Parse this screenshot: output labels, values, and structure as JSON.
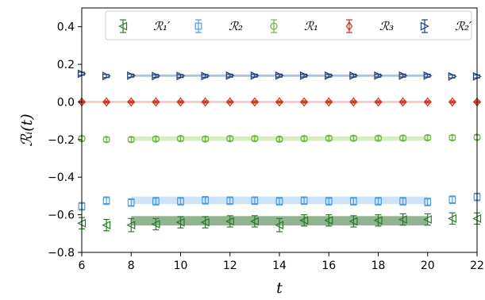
{
  "chart_data": {
    "type": "scatter",
    "xlabel": "t",
    "ylabel": "ℛᵢ(t)",
    "xlim": [
      6,
      22
    ],
    "ylim": [
      -0.8,
      0.5
    ],
    "xticks": [
      6,
      8,
      10,
      12,
      14,
      16,
      18,
      20,
      22
    ],
    "yticks": [
      -0.8,
      -0.6,
      -0.4,
      -0.2,
      0.0,
      0.2,
      0.4
    ],
    "xtick_labels": [
      "6",
      "8",
      "10",
      "12",
      "14",
      "16",
      "18",
      "20",
      "22"
    ],
    "ytick_labels": [
      "−0.8",
      "−0.6",
      "−0.4",
      "−0.2",
      "0.0",
      "0.2",
      "0.4"
    ],
    "grid": false,
    "legend": {
      "placement": "top",
      "columns": 5
    },
    "series": [
      {
        "name": "ℛ₁′",
        "color": "#2a7a2a",
        "marker": "triangle-left",
        "band_color": "#5f945f",
        "band": {
          "x_range": [
            8,
            20
          ],
          "center": -0.632,
          "half_width": 0.025
        },
        "x": [
          6,
          7,
          8,
          9,
          10,
          11,
          12,
          13,
          14,
          15,
          16,
          17,
          18,
          19,
          20,
          21,
          22
        ],
        "y": [
          -0.645,
          -0.655,
          -0.655,
          -0.65,
          -0.64,
          -0.64,
          -0.635,
          -0.635,
          -0.655,
          -0.63,
          -0.63,
          -0.635,
          -0.63,
          -0.625,
          -0.625,
          -0.62,
          -0.62
        ],
        "err": [
          0.03,
          0.03,
          0.035,
          0.03,
          0.03,
          0.03,
          0.03,
          0.03,
          0.035,
          0.03,
          0.03,
          0.03,
          0.03,
          0.03,
          0.03,
          0.03,
          0.03
        ]
      },
      {
        "name": "ℛ₂",
        "color": "#4f9be0",
        "marker": "square",
        "band_color": "#b8d9f5",
        "band": {
          "x_range": [
            8,
            20
          ],
          "center": -0.523,
          "half_width": 0.02
        },
        "x": [
          6,
          7,
          8,
          9,
          10,
          11,
          12,
          13,
          14,
          15,
          16,
          17,
          18,
          19,
          20,
          21,
          22
        ],
        "y": [
          -0.555,
          -0.525,
          -0.535,
          -0.528,
          -0.528,
          -0.523,
          -0.525,
          -0.525,
          -0.528,
          -0.525,
          -0.528,
          -0.528,
          -0.528,
          -0.528,
          -0.532,
          -0.52,
          -0.505
        ],
        "err": [
          0.02,
          0.02,
          0.02,
          0.02,
          0.02,
          0.02,
          0.02,
          0.02,
          0.02,
          0.02,
          0.02,
          0.02,
          0.02,
          0.02,
          0.02,
          0.02,
          0.02
        ]
      },
      {
        "name": "ℛ₁",
        "color": "#6db33f",
        "marker": "circle",
        "band_color": "#c9e5a8",
        "band": {
          "x_range": [
            8,
            20
          ],
          "center": -0.195,
          "half_width": 0.012
        },
        "x": [
          6,
          7,
          8,
          9,
          10,
          11,
          12,
          13,
          14,
          15,
          16,
          17,
          18,
          19,
          20,
          21,
          22
        ],
        "y": [
          -0.195,
          -0.2,
          -0.2,
          -0.197,
          -0.195,
          -0.197,
          -0.195,
          -0.195,
          -0.198,
          -0.195,
          -0.193,
          -0.193,
          -0.193,
          -0.192,
          -0.19,
          -0.19,
          -0.188
        ],
        "err": [
          0.012,
          0.012,
          0.012,
          0.012,
          0.012,
          0.012,
          0.012,
          0.012,
          0.012,
          0.012,
          0.012,
          0.012,
          0.012,
          0.012,
          0.012,
          0.012,
          0.012
        ]
      },
      {
        "name": "ℛ₃",
        "color": "#c8331f",
        "marker": "diamond",
        "band_color": "#eca8a0",
        "band": {
          "x_range": [
            6,
            20
          ],
          "center": 0.0,
          "half_width": 0.005
        },
        "x": [
          6,
          7,
          8,
          9,
          10,
          11,
          12,
          13,
          14,
          15,
          16,
          17,
          18,
          19,
          20,
          21,
          22
        ],
        "y": [
          0.0,
          0.0,
          0.0,
          0.0,
          0.0,
          0.0,
          0.0,
          0.0,
          0.0,
          0.0,
          0.0,
          0.0,
          0.0,
          0.0,
          0.0,
          0.0,
          0.0
        ],
        "err": [
          0.006,
          0.006,
          0.006,
          0.006,
          0.006,
          0.006,
          0.006,
          0.006,
          0.006,
          0.006,
          0.006,
          0.006,
          0.006,
          0.006,
          0.006,
          0.006,
          0.006
        ]
      },
      {
        "name": "ℛ₂′",
        "color": "#1c3f7a",
        "marker": "triangle-right",
        "band_color": "#8fa6c8",
        "band": {
          "x_range": [
            8,
            20
          ],
          "center": 0.14,
          "half_width": 0.006
        },
        "x": [
          6,
          7,
          8,
          9,
          10,
          11,
          12,
          13,
          14,
          15,
          16,
          17,
          18,
          19,
          20,
          21,
          22
        ],
        "y": [
          0.15,
          0.138,
          0.14,
          0.138,
          0.138,
          0.138,
          0.14,
          0.14,
          0.14,
          0.14,
          0.14,
          0.14,
          0.14,
          0.14,
          0.14,
          0.136,
          0.136
        ],
        "err": [
          0.008,
          0.008,
          0.008,
          0.008,
          0.008,
          0.008,
          0.008,
          0.008,
          0.008,
          0.008,
          0.008,
          0.008,
          0.008,
          0.008,
          0.008,
          0.008,
          0.008
        ]
      }
    ]
  }
}
